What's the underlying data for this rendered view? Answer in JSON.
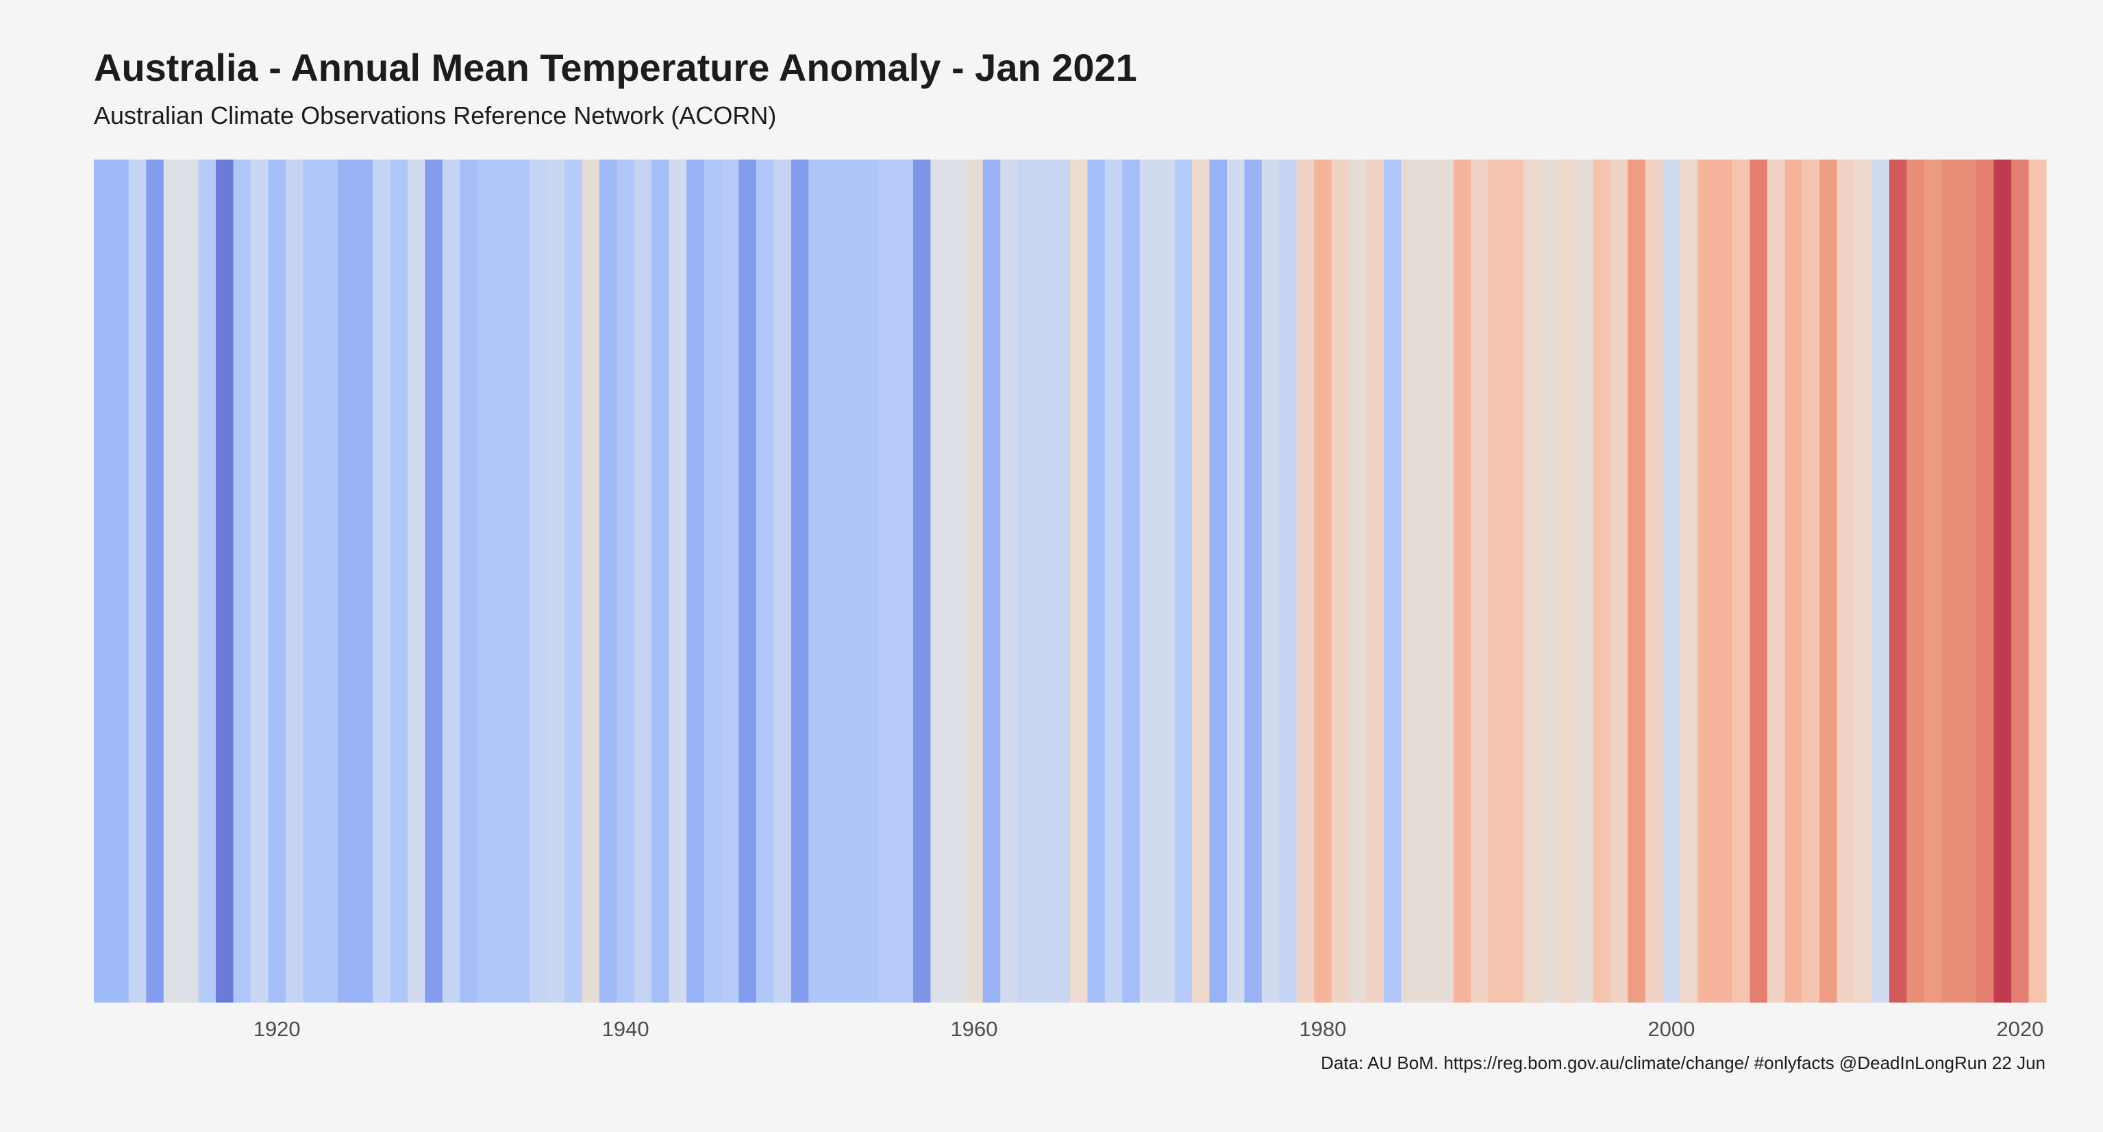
{
  "chart_data": {
    "type": "heatmap",
    "title": "Australia - Annual Mean Temperature Anomaly - Jan 2021",
    "subtitle": "Australian Climate Observations Reference Network (ACORN)",
    "caption": "Data: AU BoM. https://reg.bom.gov.au/climate/change/ #onlyfacts @DeadInLongRun 22 Jun",
    "x_ticks": [
      1920,
      1940,
      1960,
      1980,
      2000,
      2020
    ],
    "xlim": [
      1909.5,
      2021.5
    ],
    "grid": false,
    "legend": "none",
    "colors": {
      "background": "#f5f5f5",
      "text": "#1c1c1c",
      "tick_text": "#4d4d4d"
    },
    "stripes": [
      {
        "year": 1910,
        "color": "#a1bbf8"
      },
      {
        "year": 1911,
        "color": "#a1bbf8"
      },
      {
        "year": 1912,
        "color": "#c5d4f4"
      },
      {
        "year": 1913,
        "color": "#849ced"
      },
      {
        "year": 1914,
        "color": "#dcdfe5"
      },
      {
        "year": 1915,
        "color": "#dcdfe5"
      },
      {
        "year": 1916,
        "color": "#b6cbf8"
      },
      {
        "year": 1917,
        "color": "#6c7bd7"
      },
      {
        "year": 1918,
        "color": "#b2c7f9"
      },
      {
        "year": 1919,
        "color": "#c9d6f2"
      },
      {
        "year": 1920,
        "color": "#a5bef8"
      },
      {
        "year": 1921,
        "color": "#c5d4f4"
      },
      {
        "year": 1922,
        "color": "#b2c7f9"
      },
      {
        "year": 1923,
        "color": "#b2c7f9"
      },
      {
        "year": 1924,
        "color": "#98b2f5"
      },
      {
        "year": 1925,
        "color": "#98b2f5"
      },
      {
        "year": 1926,
        "color": "#c5d4f4"
      },
      {
        "year": 1927,
        "color": "#b2c7f9"
      },
      {
        "year": 1928,
        "color": "#d2daf0"
      },
      {
        "year": 1929,
        "color": "#849ced"
      },
      {
        "year": 1930,
        "color": "#c5d4f4"
      },
      {
        "year": 1931,
        "color": "#a5bef8"
      },
      {
        "year": 1932,
        "color": "#b2c7f9"
      },
      {
        "year": 1933,
        "color": "#b2c7f9"
      },
      {
        "year": 1934,
        "color": "#b2c7f9"
      },
      {
        "year": 1935,
        "color": "#c5d4f4"
      },
      {
        "year": 1936,
        "color": "#c9d6f2"
      },
      {
        "year": 1937,
        "color": "#b6cbf8"
      },
      {
        "year": 1938,
        "color": "#e6dcd6"
      },
      {
        "year": 1939,
        "color": "#a1bbf8"
      },
      {
        "year": 1940,
        "color": "#b2c7f9"
      },
      {
        "year": 1941,
        "color": "#c5d4f4"
      },
      {
        "year": 1942,
        "color": "#a5bef8"
      },
      {
        "year": 1943,
        "color": "#d2daf0"
      },
      {
        "year": 1944,
        "color": "#98b2f5"
      },
      {
        "year": 1945,
        "color": "#b2c7f9"
      },
      {
        "year": 1946,
        "color": "#b6cbf8"
      },
      {
        "year": 1947,
        "color": "#849ced"
      },
      {
        "year": 1948,
        "color": "#b2c7f9"
      },
      {
        "year": 1949,
        "color": "#c5d4f4"
      },
      {
        "year": 1950,
        "color": "#849ced"
      },
      {
        "year": 1951,
        "color": "#afc6fa"
      },
      {
        "year": 1952,
        "color": "#afc6fa"
      },
      {
        "year": 1953,
        "color": "#afc6fa"
      },
      {
        "year": 1954,
        "color": "#afc6fa"
      },
      {
        "year": 1955,
        "color": "#b6cbf8"
      },
      {
        "year": 1956,
        "color": "#b6cbf8"
      },
      {
        "year": 1957,
        "color": "#7f96e8"
      },
      {
        "year": 1958,
        "color": "#dcdfe5"
      },
      {
        "year": 1959,
        "color": "#dcdfe5"
      },
      {
        "year": 1960,
        "color": "#e6dcd6"
      },
      {
        "year": 1961,
        "color": "#98b2f5"
      },
      {
        "year": 1962,
        "color": "#d2daf0"
      },
      {
        "year": 1963,
        "color": "#c9d6f2"
      },
      {
        "year": 1964,
        "color": "#c9d6f2"
      },
      {
        "year": 1965,
        "color": "#c9d6f2"
      },
      {
        "year": 1966,
        "color": "#eddbd2"
      },
      {
        "year": 1967,
        "color": "#a5bef8"
      },
      {
        "year": 1968,
        "color": "#c5d4f4"
      },
      {
        "year": 1969,
        "color": "#a5bef8"
      },
      {
        "year": 1970,
        "color": "#d2daf0"
      },
      {
        "year": 1971,
        "color": "#d2daf0"
      },
      {
        "year": 1972,
        "color": "#b6cbf8"
      },
      {
        "year": 1973,
        "color": "#eed8cc"
      },
      {
        "year": 1974,
        "color": "#98b2f5"
      },
      {
        "year": 1975,
        "color": "#d2daf0"
      },
      {
        "year": 1976,
        "color": "#98b2f5"
      },
      {
        "year": 1977,
        "color": "#d2daf0"
      },
      {
        "year": 1978,
        "color": "#c5d4f4"
      },
      {
        "year": 1979,
        "color": "#f0d3c5"
      },
      {
        "year": 1980,
        "color": "#f6b49c"
      },
      {
        "year": 1981,
        "color": "#f0d3c5"
      },
      {
        "year": 1982,
        "color": "#e6dcd6"
      },
      {
        "year": 1983,
        "color": "#f0d3c5"
      },
      {
        "year": 1984,
        "color": "#b2c7f9"
      },
      {
        "year": 1985,
        "color": "#e6dcd6"
      },
      {
        "year": 1986,
        "color": "#e6dcd6"
      },
      {
        "year": 1987,
        "color": "#e6dcd6"
      },
      {
        "year": 1988,
        "color": "#f6b49c"
      },
      {
        "year": 1989,
        "color": "#f0d3c5"
      },
      {
        "year": 1990,
        "color": "#f5c4ae"
      },
      {
        "year": 1991,
        "color": "#f5c4ae"
      },
      {
        "year": 1992,
        "color": "#eed8cc"
      },
      {
        "year": 1993,
        "color": "#e6dcd6"
      },
      {
        "year": 1994,
        "color": "#eed8cc"
      },
      {
        "year": 1995,
        "color": "#e6dcd6"
      },
      {
        "year": 1996,
        "color": "#f5c4ae"
      },
      {
        "year": 1997,
        "color": "#f0d3c5"
      },
      {
        "year": 1998,
        "color": "#ee9c84"
      },
      {
        "year": 1999,
        "color": "#f0d3c5"
      },
      {
        "year": 2000,
        "color": "#d2daf0"
      },
      {
        "year": 2001,
        "color": "#eed8cc"
      },
      {
        "year": 2002,
        "color": "#f6b49c"
      },
      {
        "year": 2003,
        "color": "#f6b49c"
      },
      {
        "year": 2004,
        "color": "#f5c4ae"
      },
      {
        "year": 2005,
        "color": "#e47e70"
      },
      {
        "year": 2006,
        "color": "#f0d3c5"
      },
      {
        "year": 2007,
        "color": "#f6b49c"
      },
      {
        "year": 2008,
        "color": "#f5c4ae"
      },
      {
        "year": 2009,
        "color": "#ee9c84"
      },
      {
        "year": 2010,
        "color": "#f0d3c5"
      },
      {
        "year": 2011,
        "color": "#eed8cc"
      },
      {
        "year": 2012,
        "color": "#d2daf0"
      },
      {
        "year": 2013,
        "color": "#d05a5c"
      },
      {
        "year": 2014,
        "color": "#e88e78"
      },
      {
        "year": 2015,
        "color": "#ec9a80"
      },
      {
        "year": 2016,
        "color": "#e88e78"
      },
      {
        "year": 2017,
        "color": "#e88e78"
      },
      {
        "year": 2018,
        "color": "#e47e70"
      },
      {
        "year": 2019,
        "color": "#c03a50"
      },
      {
        "year": 2020,
        "color": "#e47e70"
      },
      {
        "year": 2021,
        "color": "#f5c4ae"
      }
    ]
  }
}
